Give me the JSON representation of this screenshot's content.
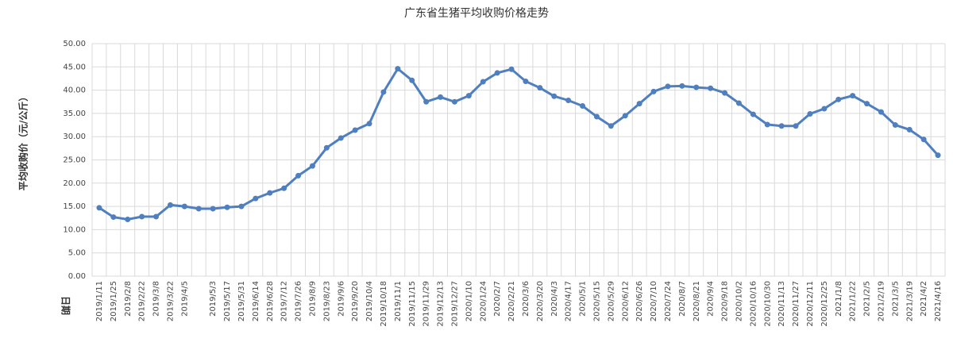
{
  "chart_data": {
    "type": "line",
    "title": "广东省生猪平均收购价格走势",
    "y_label": "平均收购价（元/公斤）",
    "x_label": "日期",
    "categories": [
      "2019/1/11",
      "2019/1/25",
      "2019/2/8",
      "2019/2/22",
      "2019/3/8",
      "2019/3/22",
      "2019/4/5",
      null,
      "2019/5/3",
      "2019/5/17",
      "2019/5/31",
      "2019/6/14",
      "2019/6/28",
      "2019/7/12",
      "2019/7/26",
      "2019/8/9",
      "2019/8/23",
      "2019/9/6",
      "2019/9/20",
      "2019/10/4",
      "2019/10/18",
      "2019/11/1",
      "2019/11/15",
      "2019/11/29",
      "2019/12/13",
      "2019/12/27",
      "2020/1/10",
      "2020/1/24",
      "2020/2/7",
      "2020/2/21",
      "2020/3/6",
      "2020/3/20",
      "2020/4/3",
      "2020/4/17",
      "2020/5/1",
      "2020/5/15",
      "2020/5/29",
      "2020/6/12",
      "2020/6/26",
      "2020/7/10",
      "2020/7/24",
      "2020/8/7",
      "2020/8/21",
      "2020/9/4",
      "2020/9/18",
      "2020/10/2",
      "2020/10/16",
      "2020/10/30",
      "2020/11/13",
      "2020/11/27",
      "2020/12/11",
      "2020/12/25",
      "2021/1/8",
      "2021/1/22",
      "2021/2/5",
      "2021/2/19",
      "2021/3/5",
      "2021/3/19",
      "2021/4/2",
      "2021/4/16"
    ],
    "series": [
      {
        "color": "#4f7fbf",
        "values": [
          14.7,
          12.7,
          12.2,
          12.8,
          12.8,
          15.3,
          15.0,
          14.5,
          14.5,
          14.8,
          15.0,
          16.7,
          17.9,
          18.9,
          21.6,
          23.7,
          27.6,
          29.7,
          31.4,
          32.8,
          39.6,
          44.6,
          42.1,
          37.5,
          38.5,
          37.5,
          38.8,
          41.8,
          43.7,
          44.5,
          41.9,
          40.5,
          38.7,
          37.8,
          36.6,
          34.3,
          32.3,
          34.5,
          37.1,
          39.7,
          40.8,
          40.9,
          40.6,
          40.4,
          39.4,
          37.2,
          34.8,
          32.6,
          32.3,
          32.3,
          34.9,
          36.0,
          38.0,
          38.8,
          37.1,
          35.3,
          32.5,
          31.5,
          29.4,
          26.0
        ]
      }
    ],
    "ylim": [
      0,
      50
    ],
    "yticks": [
      {
        "value": 0,
        "label": "0.00"
      },
      {
        "value": 5,
        "label": "5.00"
      },
      {
        "value": 10,
        "label": "10.00"
      },
      {
        "value": 15,
        "label": "15.00"
      },
      {
        "value": 20,
        "label": "20.00"
      },
      {
        "value": 25,
        "label": "25.00"
      },
      {
        "value": 30,
        "label": "30.00"
      },
      {
        "value": 35,
        "label": "35.00"
      },
      {
        "value": 40,
        "label": "40.00"
      },
      {
        "value": 45,
        "label": "45.00"
      },
      {
        "value": 50,
        "label": "50.00"
      }
    ],
    "grid": true
  }
}
